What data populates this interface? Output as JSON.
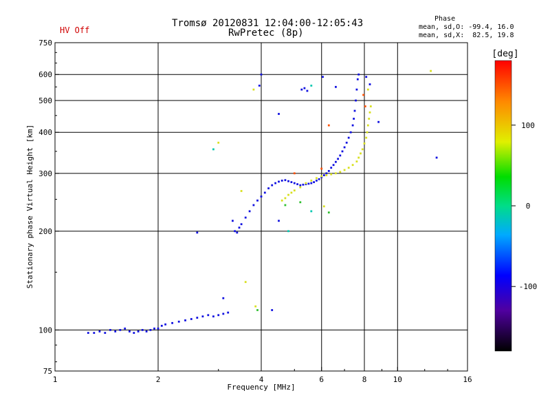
{
  "header": {
    "status": "HV Off",
    "title_line1": "Tromsø 20120831 12:04:00-12:05:43",
    "title_line2": "RwPretec (8p)",
    "phase_title": "Phase",
    "phase_line1": "mean, sd,O: -99.4, 16.0",
    "phase_line2": "mean, sd,X:  82.5, 19.8"
  },
  "colorbar": {
    "unit": "[deg]",
    "ticks": [
      "100",
      "0",
      "-100"
    ],
    "tick_values": [
      100,
      0,
      -100
    ],
    "range": [
      -180,
      180
    ]
  },
  "chart_data": {
    "type": "scatter",
    "title": "Tromsø 20120831 12:04:00-12:05:43",
    "subtitle": "RwPretec (8p)",
    "xlabel": "Frequency [MHz]",
    "ylabel": "Stationary phase Virtual Height [km]",
    "xscale": "log",
    "yscale": "log",
    "xlim": [
      1,
      16
    ],
    "ylim": [
      75,
      750
    ],
    "xticks": [
      1,
      2,
      4,
      6,
      8,
      10,
      16
    ],
    "xtick_labels": [
      "1",
      "2",
      "4",
      "6",
      "8",
      "10",
      "16"
    ],
    "yticks": [
      75,
      100,
      200,
      300,
      400,
      500,
      600,
      750
    ],
    "ytick_labels": [
      "75",
      "100",
      "200",
      "300",
      "400",
      "500",
      "600",
      "750"
    ],
    "grid": true,
    "series": [
      {
        "phase_deg": -100,
        "color": "#1010e0",
        "points": [
          [
            1.25,
            98
          ],
          [
            1.3,
            98
          ],
          [
            1.35,
            99
          ],
          [
            1.4,
            98
          ],
          [
            1.45,
            100
          ],
          [
            1.5,
            99
          ],
          [
            1.55,
            100
          ],
          [
            1.6,
            101
          ],
          [
            1.65,
            99
          ],
          [
            1.7,
            98
          ],
          [
            1.75,
            99
          ],
          [
            1.8,
            100
          ],
          [
            1.85,
            99
          ],
          [
            1.9,
            100
          ],
          [
            1.95,
            101
          ],
          [
            2.0,
            101
          ],
          [
            2.05,
            103
          ],
          [
            2.1,
            104
          ],
          [
            2.2,
            105
          ],
          [
            2.3,
            106
          ],
          [
            2.4,
            107
          ],
          [
            2.5,
            108
          ],
          [
            2.6,
            109
          ],
          [
            2.7,
            110
          ],
          [
            2.8,
            111
          ],
          [
            2.9,
            110
          ],
          [
            3.0,
            111
          ],
          [
            3.1,
            112
          ],
          [
            3.2,
            113
          ],
          [
            3.3,
            215
          ],
          [
            3.35,
            200
          ],
          [
            3.4,
            198
          ],
          [
            3.45,
            205
          ],
          [
            3.5,
            210
          ],
          [
            3.6,
            220
          ],
          [
            3.7,
            230
          ],
          [
            3.8,
            240
          ],
          [
            3.9,
            248
          ],
          [
            4.0,
            255
          ],
          [
            4.1,
            262
          ],
          [
            4.2,
            270
          ],
          [
            4.3,
            276
          ],
          [
            4.4,
            280
          ],
          [
            4.5,
            283
          ],
          [
            4.6,
            285
          ],
          [
            4.7,
            286
          ],
          [
            4.8,
            284
          ],
          [
            4.9,
            282
          ],
          [
            5.0,
            280
          ],
          [
            5.1,
            278
          ],
          [
            5.2,
            276
          ],
          [
            5.3,
            277
          ],
          [
            5.4,
            278
          ],
          [
            5.5,
            279
          ],
          [
            5.6,
            280
          ],
          [
            5.7,
            282
          ],
          [
            5.8,
            285
          ],
          [
            5.9,
            288
          ],
          [
            6.0,
            292
          ],
          [
            6.1,
            296
          ],
          [
            6.2,
            300
          ],
          [
            6.3,
            305
          ],
          [
            6.4,
            312
          ],
          [
            6.5,
            318
          ],
          [
            6.6,
            325
          ],
          [
            6.7,
            332
          ],
          [
            6.8,
            340
          ],
          [
            6.9,
            350
          ],
          [
            7.0,
            360
          ],
          [
            7.1,
            372
          ],
          [
            7.2,
            385
          ],
          [
            7.3,
            400
          ],
          [
            7.4,
            420
          ],
          [
            7.45,
            440
          ],
          [
            7.5,
            465
          ],
          [
            7.55,
            500
          ],
          [
            7.6,
            540
          ],
          [
            7.65,
            580
          ],
          [
            7.7,
            600
          ],
          [
            5.25,
            540
          ],
          [
            5.35,
            545
          ],
          [
            5.45,
            535
          ],
          [
            6.05,
            590
          ],
          [
            6.6,
            550
          ],
          [
            4.0,
            600
          ],
          [
            4.5,
            455
          ],
          [
            4.5,
            215
          ],
          [
            2.6,
            198
          ],
          [
            3.1,
            125
          ],
          [
            4.3,
            115
          ],
          [
            3.95,
            555
          ],
          [
            8.1,
            590
          ],
          [
            8.3,
            560
          ],
          [
            8.8,
            430
          ],
          [
            13.0,
            335
          ]
        ]
      },
      {
        "phase_deg": 100,
        "color": "#d8e020",
        "points": [
          [
            4.6,
            248
          ],
          [
            4.7,
            252
          ],
          [
            4.8,
            258
          ],
          [
            4.9,
            262
          ],
          [
            5.0,
            266
          ],
          [
            5.2,
            272
          ],
          [
            5.4,
            280
          ],
          [
            5.6,
            285
          ],
          [
            5.8,
            290
          ],
          [
            6.0,
            294
          ],
          [
            6.2,
            296
          ],
          [
            6.4,
            298
          ],
          [
            6.6,
            300
          ],
          [
            6.8,
            303
          ],
          [
            7.0,
            307
          ],
          [
            7.2,
            312
          ],
          [
            7.4,
            318
          ],
          [
            7.6,
            326
          ],
          [
            7.7,
            335
          ],
          [
            7.8,
            345
          ],
          [
            7.9,
            355
          ],
          [
            8.0,
            370
          ],
          [
            8.1,
            385
          ],
          [
            8.15,
            400
          ],
          [
            8.2,
            420
          ],
          [
            8.25,
            440
          ],
          [
            8.3,
            460
          ],
          [
            8.35,
            480
          ],
          [
            3.0,
            372
          ],
          [
            3.5,
            265
          ],
          [
            3.6,
            140
          ],
          [
            3.85,
            118
          ],
          [
            3.8,
            540
          ],
          [
            12.5,
            615
          ],
          [
            6.1,
            238
          ],
          [
            8.2,
            540
          ]
        ]
      },
      {
        "phase_deg": 30,
        "color": "#30c030",
        "points": [
          [
            3.9,
            115
          ],
          [
            4.7,
            240
          ],
          [
            5.2,
            245
          ],
          [
            6.3,
            228
          ]
        ]
      },
      {
        "phase_deg": 150,
        "color": "#ff5000",
        "points": [
          [
            6.0,
            310
          ],
          [
            6.3,
            420
          ],
          [
            7.95,
            520
          ],
          [
            8.05,
            480
          ],
          [
            5.0,
            300
          ]
        ]
      },
      {
        "phase_deg": 0,
        "color": "#00c8b0",
        "points": [
          [
            2.9,
            355
          ],
          [
            5.6,
            230
          ],
          [
            4.8,
            200
          ],
          [
            5.6,
            555
          ]
        ]
      }
    ]
  }
}
